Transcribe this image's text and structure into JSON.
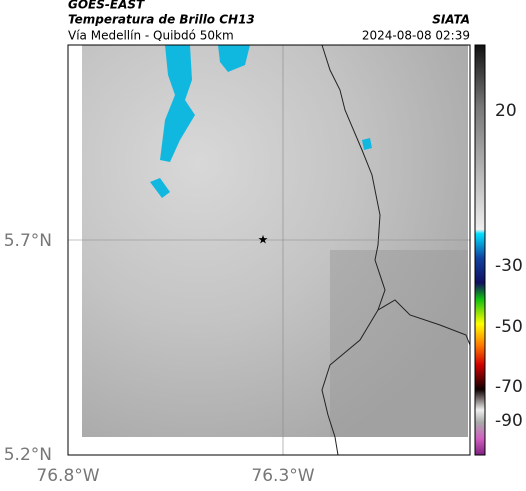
{
  "header": {
    "source": "GOES-EAST",
    "title": "Temperatura de Brillo CH13",
    "subtitle": "Vía Medellín - Quibdó 50km",
    "brand": "SIATA",
    "timestamp": "2024-08-08 02:39"
  },
  "map": {
    "lat_labels": [
      "5.7°N",
      "5.2°N"
    ],
    "lon_labels": [
      "76.8°W",
      "76.3°W"
    ]
  },
  "colorbar": {
    "labels": [
      "20",
      "-30",
      "-50",
      "-70",
      "-90"
    ]
  }
}
